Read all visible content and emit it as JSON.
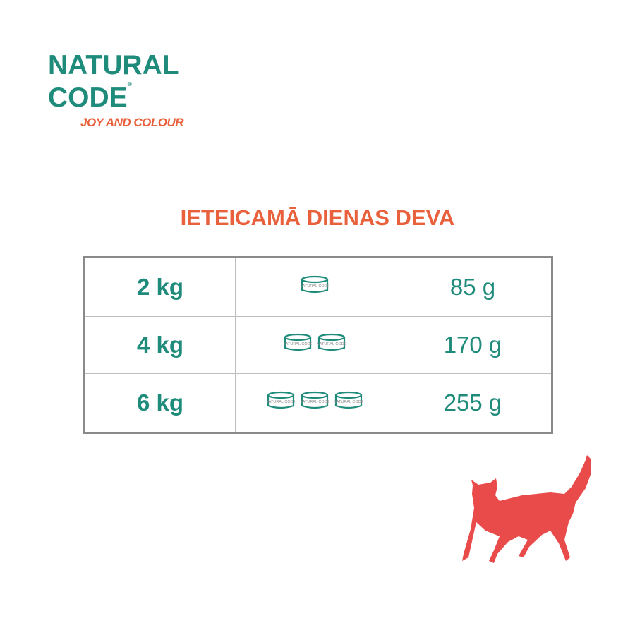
{
  "logo": {
    "line1": "NATURAL",
    "line2": "CODE",
    "registered": "®",
    "tagline": "JOY AND COLOUR"
  },
  "title": "IETEICAMĀ DIENAS DEVA",
  "rows": [
    {
      "weight": "2 kg",
      "cans": 1,
      "amount": "85 g"
    },
    {
      "weight": "4 kg",
      "cans": 2,
      "amount": "170 g"
    },
    {
      "weight": "6 kg",
      "cans": 3,
      "amount": "255 g"
    }
  ],
  "can_label": "NATURAL CODE",
  "colors": {
    "teal": "#1f8b7b",
    "orange": "#e8603c",
    "cat": "#e84b4a"
  }
}
